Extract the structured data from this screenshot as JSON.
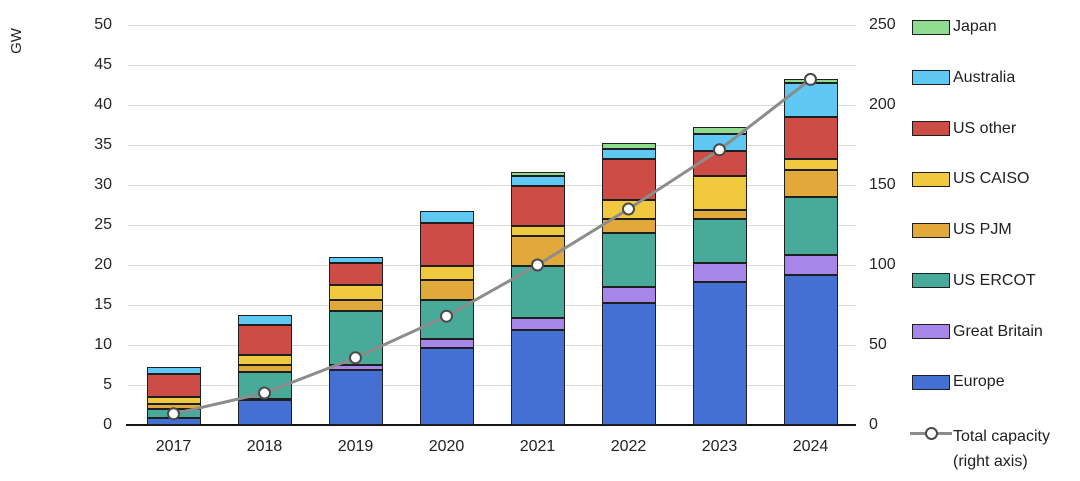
{
  "chart_data": {
    "type": "bar+line",
    "title": "",
    "left_axis": {
      "title": "GW",
      "min": 0,
      "max": 50,
      "step": 5,
      "ticks": [
        0,
        5,
        10,
        15,
        20,
        25,
        30,
        35,
        40,
        45,
        50
      ]
    },
    "right_axis": {
      "min": 0,
      "max": 250,
      "step": 50,
      "ticks": [
        0,
        50,
        100,
        150,
        200,
        250
      ]
    },
    "categories": [
      "2017",
      "2018",
      "2019",
      "2020",
      "2021",
      "2022",
      "2023",
      "2024"
    ],
    "series": [
      {
        "name": "Europe",
        "color": "#4470D4",
        "values": [
          0.9,
          3.1,
          6.9,
          9.6,
          11.9,
          15.3,
          17.9,
          18.8
        ]
      },
      {
        "name": "Great Britain",
        "color": "#A686E8",
        "values": [
          0,
          0.2,
          0.6,
          1.2,
          1.5,
          2.0,
          2.3,
          2.5
        ]
      },
      {
        "name": "US ERCOT",
        "color": "#48AB99",
        "values": [
          1.1,
          3.3,
          6.8,
          4.8,
          6.5,
          6.7,
          5.6,
          7.2
        ]
      },
      {
        "name": "US PJM",
        "color": "#E1A83A",
        "values": [
          0.6,
          0.9,
          1.3,
          2.5,
          3.7,
          1.7,
          1.1,
          3.4
        ]
      },
      {
        "name": "US CAISO",
        "color": "#F1C93F",
        "values": [
          0.9,
          1.3,
          1.9,
          1.8,
          1.3,
          2.4,
          4.2,
          1.3
        ]
      },
      {
        "name": "US other",
        "color": "#CD4C45",
        "values": [
          2.9,
          3.7,
          2.8,
          5.3,
          5.0,
          5.1,
          3.2,
          5.3
        ]
      },
      {
        "name": "Australia",
        "color": "#5FC9F3",
        "values": [
          0.8,
          1.3,
          0.7,
          1.5,
          1.2,
          1.3,
          2.1,
          4.2
        ]
      },
      {
        "name": "Japan",
        "color": "#8FDB90",
        "values": [
          0,
          0,
          0,
          0,
          0.5,
          0.8,
          0.8,
          0.6
        ]
      }
    ],
    "line_series": {
      "name": "Total capacity (right axis)",
      "axis": "right",
      "color": "#8C8C8C",
      "marker": "open-circle",
      "values": [
        7,
        20,
        42,
        68,
        100,
        135,
        172,
        216
      ]
    },
    "legend": [
      {
        "label": "Japan",
        "color": "#8FDB90",
        "type": "box"
      },
      {
        "label": "Australia",
        "color": "#5FC9F3",
        "type": "box"
      },
      {
        "label": "US other",
        "color": "#CD4C45",
        "type": "box"
      },
      {
        "label": "US CAISO",
        "color": "#F1C93F",
        "type": "box"
      },
      {
        "label": "US PJM",
        "color": "#E1A83A",
        "type": "box"
      },
      {
        "label": "US ERCOT",
        "color": "#48AB99",
        "type": "box"
      },
      {
        "label": "Great Britain",
        "color": "#A686E8",
        "type": "box"
      },
      {
        "label": "Europe",
        "color": "#4470D4",
        "type": "box"
      },
      {
        "label": "Total capacity",
        "label2": "(right axis)",
        "color": "#8C8C8C",
        "type": "line"
      }
    ],
    "grid": "horizontal",
    "legend_position": "right"
  }
}
